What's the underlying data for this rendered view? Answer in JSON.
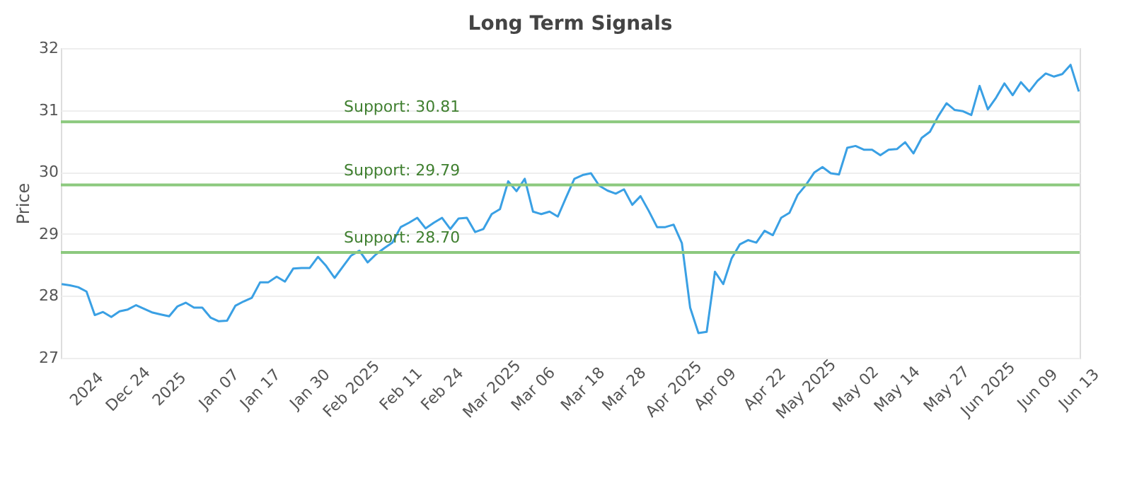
{
  "chart_data": {
    "type": "line",
    "title": "Long Term Signals",
    "ylabel": "Price",
    "categories": [
      null,
      null,
      null,
      "2024",
      null,
      null,
      null,
      null,
      "Dec 24",
      null,
      null,
      null,
      null,
      "2025",
      null,
      null,
      null,
      null,
      null,
      "Jan 07",
      null,
      null,
      null,
      null,
      "Jan 17",
      null,
      null,
      null,
      null,
      null,
      "Jan 30",
      null,
      null,
      null,
      null,
      "Feb 2025",
      null,
      null,
      null,
      null,
      null,
      "Feb 11",
      null,
      null,
      null,
      null,
      "Feb 24",
      null,
      null,
      null,
      null,
      null,
      "Mar 2025",
      null,
      null,
      null,
      null,
      "Mar 06",
      null,
      null,
      null,
      null,
      null,
      "Mar 18",
      null,
      null,
      null,
      null,
      "Mar 28",
      null,
      null,
      null,
      null,
      null,
      "Apr 2025",
      null,
      null,
      null,
      null,
      "Apr 09",
      null,
      null,
      null,
      null,
      null,
      "Apr 22",
      null,
      null,
      null,
      null,
      "May 2025",
      null,
      null,
      null,
      null,
      null,
      "May 02",
      null,
      null,
      null,
      null,
      "May 14",
      null,
      null,
      null,
      null,
      null,
      "May 27",
      null,
      null,
      null,
      null,
      "Jun 2025",
      null,
      null,
      null,
      null,
      null,
      "Jun 09",
      null,
      null,
      null,
      null,
      "Jun 13"
    ],
    "series": [
      {
        "color": "#3aa0e4",
        "values": [
          28.19,
          28.17,
          28.14,
          28.07,
          27.69,
          27.74,
          27.66,
          27.75,
          27.78,
          27.85,
          27.79,
          27.73,
          27.7,
          27.67,
          27.83,
          27.89,
          27.81,
          27.81,
          27.65,
          27.59,
          27.6,
          27.84,
          27.91,
          27.97,
          28.22,
          28.22,
          28.31,
          28.23,
          28.44,
          28.45,
          28.45,
          28.63,
          28.48,
          28.29,
          28.47,
          28.65,
          28.73,
          28.54,
          28.67,
          28.77,
          28.86,
          29.11,
          29.18,
          29.26,
          29.09,
          29.18,
          29.26,
          29.08,
          29.25,
          29.26,
          29.03,
          29.08,
          29.32,
          29.4,
          29.85,
          29.69,
          29.89,
          29.36,
          29.32,
          29.36,
          29.28,
          29.59,
          29.89,
          29.95,
          29.98,
          29.78,
          29.7,
          29.65,
          29.72,
          29.47,
          29.61,
          29.37,
          29.11,
          29.11,
          29.15,
          28.85,
          27.81,
          27.4,
          27.42,
          28.39,
          28.19,
          28.6,
          28.83,
          28.9,
          28.86,
          29.05,
          28.98,
          29.26,
          29.34,
          29.63,
          29.79,
          29.99,
          30.08,
          29.98,
          29.96,
          30.39,
          30.42,
          30.36,
          30.36,
          30.27,
          30.36,
          30.37,
          30.48,
          30.3,
          30.55,
          30.65,
          30.9,
          31.11,
          31.0,
          30.98,
          30.92,
          31.39,
          31.01,
          31.2,
          31.43,
          31.24,
          31.45,
          31.3,
          31.47,
          31.59,
          31.54,
          31.58,
          31.73,
          31.3
        ]
      }
    ],
    "ylim": [
      27,
      32
    ],
    "yticks": [
      27,
      28,
      29,
      30,
      31,
      32
    ],
    "grid": "y",
    "marker": "none",
    "line_style": "solid",
    "ref_lines": [
      {
        "axis": "y",
        "value": 30.81,
        "label": "Support: 30.81",
        "color": "#8cc97e"
      },
      {
        "axis": "y",
        "value": 29.79,
        "label": "Support: 29.79",
        "color": "#8cc97e"
      },
      {
        "axis": "y",
        "value": 28.7,
        "label": "Support: 28.70",
        "color": "#8cc97e"
      }
    ]
  }
}
